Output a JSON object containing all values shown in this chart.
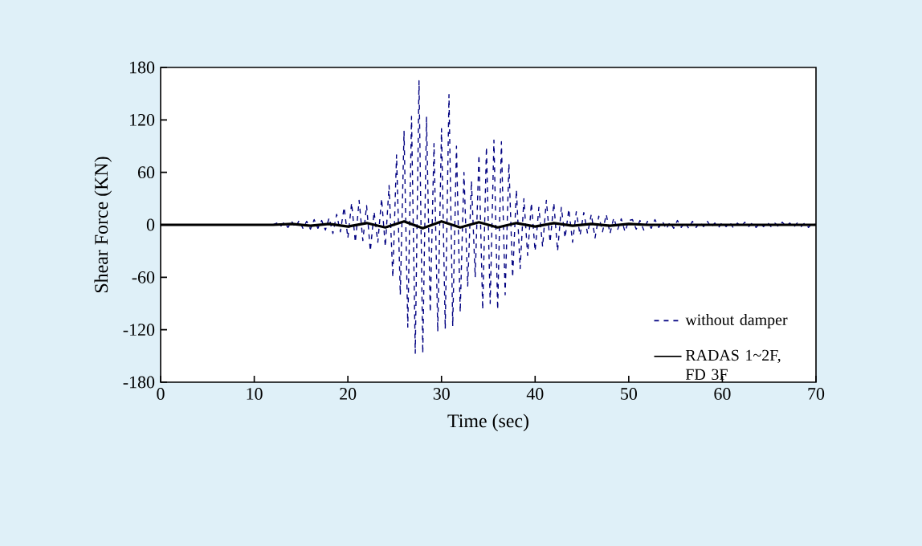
{
  "chart_data": {
    "type": "line",
    "xlabel": "Time (sec)",
    "ylabel": "Shear Force (KN)",
    "xlim": [
      0,
      70
    ],
    "ylim": [
      -180,
      180
    ],
    "xticks": [
      0,
      10,
      20,
      30,
      40,
      50,
      60,
      70
    ],
    "yticks": [
      -180,
      -120,
      -60,
      0,
      60,
      120,
      180
    ],
    "legend": "bottom right",
    "grid": false,
    "marker": "none",
    "series": [
      {
        "name": "without damper",
        "color": "#000080",
        "line_style": "dashed",
        "x": [
          12,
          12.4,
          12.8,
          13.2,
          13.6,
          14,
          14.4,
          14.8,
          15.2,
          15.6,
          16,
          16.4,
          16.8,
          17.2,
          17.6,
          18,
          18.4,
          18.8,
          19.2,
          19.6,
          20,
          20.4,
          20.8,
          21.2,
          21.6,
          22,
          22.4,
          22.8,
          23.2,
          23.6,
          24,
          24.4,
          24.8,
          25.2,
          25.6,
          26,
          26.4,
          26.8,
          27.2,
          27.6,
          28,
          28.4,
          28.8,
          29.2,
          29.6,
          30,
          30.4,
          30.8,
          31.2,
          31.6,
          32,
          32.4,
          32.8,
          33.2,
          33.6,
          34,
          34.4,
          34.8,
          35.2,
          35.6,
          36,
          36.4,
          36.8,
          37.2,
          37.6,
          38,
          38.4,
          38.8,
          39.2,
          39.6,
          40,
          40.4,
          40.8,
          41.2,
          41.6,
          42,
          42.4,
          42.8,
          43.2,
          43.6,
          44,
          44.4,
          44.8,
          45.2,
          45.6,
          46,
          46.4,
          46.8,
          47.2,
          47.6,
          48,
          48.4,
          48.8,
          49.2,
          49.6,
          50,
          50.4,
          50.8,
          51.2,
          51.6,
          52,
          52.4,
          52.8,
          53.2,
          53.6,
          54,
          54.4,
          54.8,
          55.2,
          55.6,
          56,
          56.4,
          56.8,
          57.2,
          57.6,
          58,
          58.4,
          58.8,
          59.2,
          59.6,
          60,
          60.4,
          60.8,
          61.2,
          61.6,
          62,
          62.4,
          62.8,
          63.2,
          63.6,
          64,
          64.4,
          64.8,
          65.2,
          65.6,
          66,
          66.4,
          66.8,
          67.2,
          67.6,
          68,
          68.4,
          68.8,
          69.2,
          69.6,
          70
        ],
        "values": [
          0,
          2,
          -2,
          3,
          -3,
          4,
          -3,
          5,
          -4,
          4,
          -5,
          6,
          -4,
          5,
          -6,
          8,
          -10,
          12,
          -8,
          20,
          -15,
          25,
          -20,
          28,
          -18,
          22,
          -30,
          15,
          -20,
          30,
          -25,
          45,
          -60,
          80,
          -80,
          107,
          -117,
          124,
          -147,
          165,
          -147,
          123,
          -100,
          93,
          -122,
          110,
          -119,
          149,
          -116,
          90,
          -100,
          60,
          -70,
          50,
          -60,
          80,
          -97,
          89,
          -90,
          97,
          -97,
          95,
          -80,
          70,
          -60,
          40,
          -50,
          30,
          -35,
          25,
          -30,
          20,
          -25,
          28,
          -20,
          25,
          -30,
          20,
          -15,
          18,
          -20,
          15,
          -12,
          14,
          -10,
          12,
          -15,
          10,
          -8,
          12,
          -10,
          8,
          -6,
          7,
          -8,
          5,
          6,
          -5,
          5,
          -6,
          4,
          -4,
          6,
          -3,
          4,
          -5,
          3,
          -4,
          5,
          -3,
          3,
          -4,
          4,
          -3,
          3,
          -2,
          4,
          -3,
          2,
          -3,
          3,
          -2,
          3,
          -4,
          2,
          -2,
          3,
          -2,
          2,
          -3,
          2,
          -2,
          3,
          -2,
          2,
          -2,
          3,
          -2,
          2,
          -3,
          2,
          -2,
          2,
          -3,
          2,
          0
        ]
      },
      {
        "name": "RADAS 1~2F, FD 3F",
        "color": "#000000",
        "line_style": "solid",
        "x": [
          0,
          2,
          4,
          6,
          8,
          10,
          12,
          14,
          16,
          18,
          20,
          22,
          24,
          26,
          28,
          30,
          32,
          34,
          36,
          38,
          40,
          42,
          44,
          46,
          48,
          50,
          52,
          54,
          56,
          58,
          60,
          62,
          64,
          66,
          68,
          70
        ],
        "values": [
          0,
          0,
          0,
          0,
          0,
          0,
          0,
          1,
          -1,
          1,
          -2,
          2,
          -3,
          4,
          -4,
          4,
          -3,
          3,
          -3,
          2,
          -2,
          2,
          -1,
          1,
          -1,
          1,
          0,
          0,
          0,
          0,
          0,
          0,
          0,
          0,
          0,
          0
        ]
      }
    ]
  }
}
